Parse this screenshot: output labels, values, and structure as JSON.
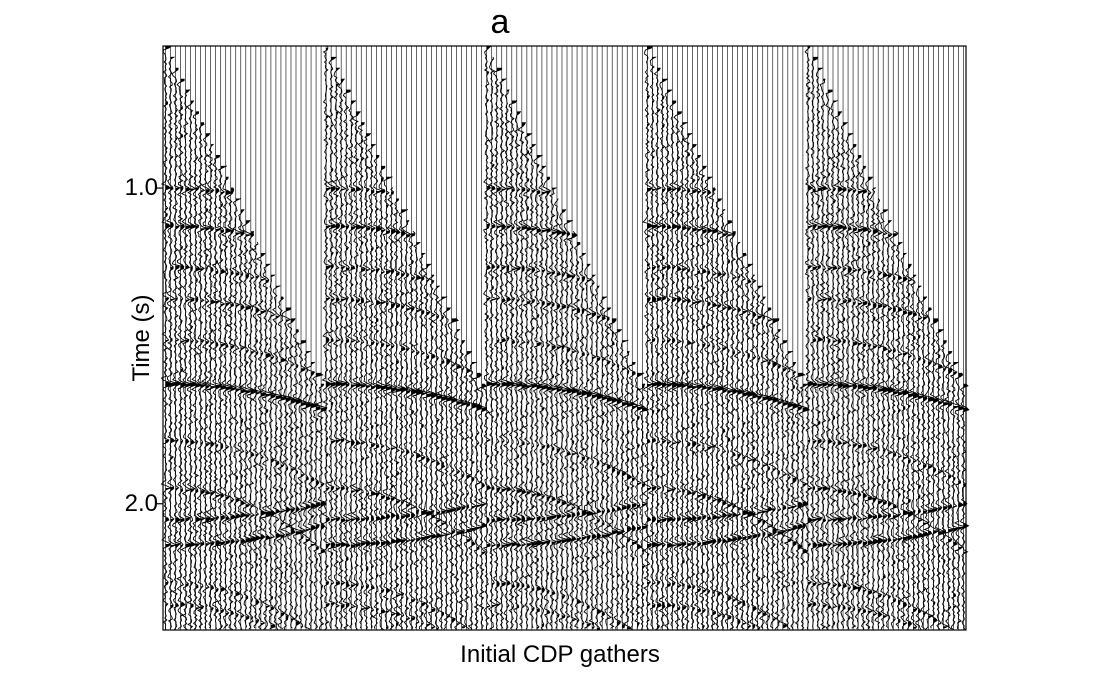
{
  "figure": {
    "panel_label": "a"
  },
  "chart_data": {
    "type": "seismic-wiggle",
    "title": "",
    "xlabel": "Initial CDP gathers",
    "ylabel": "Time (s)",
    "y_ticks": [
      {
        "value": 1.0,
        "label": "1.0"
      },
      {
        "value": 2.0,
        "label": "2.0"
      }
    ],
    "ylim": [
      0.55,
      2.4
    ],
    "y_inverted": true,
    "gathers": 5,
    "traces_per_gather": 32,
    "first_arrival": {
      "near_offset_time": 0.55,
      "far_offset_time": 1.62
    },
    "reflection_events": [
      {
        "t0": 1.0,
        "moveout": 0.09,
        "strength": 0.8
      },
      {
        "t0": 1.12,
        "moveout": 0.1,
        "strength": 1.0
      },
      {
        "t0": 1.25,
        "moveout": 0.1,
        "strength": 0.7
      },
      {
        "t0": 1.35,
        "moveout": 0.11,
        "strength": 0.7
      },
      {
        "t0": 1.48,
        "moveout": 0.12,
        "strength": 0.6
      },
      {
        "t0": 1.62,
        "moveout": 0.08,
        "strength": 1.3
      },
      {
        "t0": 1.8,
        "moveout": 0.14,
        "strength": 0.6
      },
      {
        "t0": 1.95,
        "moveout": 0.2,
        "strength": 0.8
      },
      {
        "t0": 2.05,
        "moveout": -0.05,
        "strength": 0.9
      },
      {
        "t0": 2.13,
        "moveout": -0.06,
        "strength": 1.0
      },
      {
        "t0": 2.25,
        "moveout": 0.18,
        "strength": 0.6
      },
      {
        "t0": 2.32,
        "moveout": 0.15,
        "strength": 0.6
      }
    ],
    "grid": false,
    "legend": "none"
  }
}
